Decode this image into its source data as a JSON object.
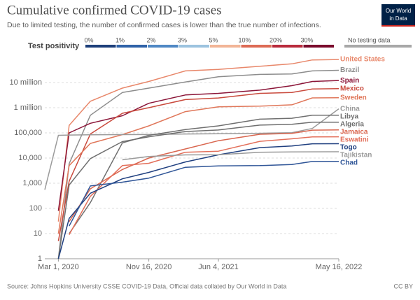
{
  "chart_data": {
    "type": "line",
    "title": "Cumulative confirmed COVID-19 cases",
    "subtitle": "Due to limited testing, the number of confirmed cases is lower than the true number of infections.",
    "logo": [
      "Our World",
      "in Data"
    ],
    "source": "Source: Johns Hopkins University CSSE COVID-19 Data, Official data collated by Our World in Data",
    "license": "CC BY",
    "legend": {
      "title": "Test positivity",
      "stops": [
        {
          "label": "0%",
          "color": "#1d3f7a"
        },
        {
          "label": "1%",
          "color": "#2f62a8"
        },
        {
          "label": "2%",
          "color": "#4f88c4"
        },
        {
          "label": "3%",
          "color": "#9cc3df"
        },
        {
          "label": "5%",
          "color": "#f2b597"
        },
        {
          "label": "10%",
          "color": "#dd6b55"
        },
        {
          "label": "20%",
          "color": "#b92b3c"
        },
        {
          "label": "30%",
          "color": "#7a0a2c"
        }
      ],
      "no_data": {
        "label": "No testing data",
        "color": "#a8a8a8"
      }
    },
    "log_scale": true,
    "grid": true,
    "xlim": [
      "2020-01-22",
      "2022-05-16"
    ],
    "xticks": [
      {
        "value": "2020-03-01",
        "label": "Mar 1, 2020"
      },
      {
        "value": "2020-11-16",
        "label": "Nov 16, 2020"
      },
      {
        "value": "2021-06-04",
        "label": "Jun 4, 2021"
      },
      {
        "value": "2022-05-16",
        "label": "May 16, 2022"
      }
    ],
    "ylim": [
      1,
      100000000
    ],
    "yticks": [
      1,
      10,
      100,
      {
        "value": 1000,
        "label": "1,000"
      },
      {
        "value": 10000,
        "label": "10,000"
      },
      {
        "value": 100000,
        "label": "100,000"
      },
      {
        "value": 1000000,
        "label": "1 million"
      },
      {
        "value": 10000000,
        "label": "10 million"
      }
    ],
    "x": [
      "2020-01-22",
      "2020-03-01",
      "2020-04-01",
      "2020-06-01",
      "2020-09-01",
      "2020-11-16",
      "2021-03-01",
      "2021-06-04",
      "2021-10-01",
      "2022-01-01",
      "2022-03-01",
      "2022-05-16"
    ],
    "series": [
      {
        "name": "United States",
        "color": "#e8876a",
        "values": [
          null,
          30,
          200000,
          1800000,
          6000000,
          11000000,
          29000000,
          33000000,
          44000000,
          55000000,
          79000000,
          82000000
        ]
      },
      {
        "name": "Brazil",
        "color": "#8c8c8c",
        "values": [
          null,
          1,
          6000,
          500000,
          4000000,
          6000000,
          10500000,
          17000000,
          21000000,
          22000000,
          29000000,
          30700000
        ]
      },
      {
        "name": "Spain",
        "color": "#8b1538",
        "values": [
          null,
          80,
          100000,
          240000,
          480000,
          1500000,
          3200000,
          3700000,
          4980000,
          7500000,
          11000000,
          12000000
        ]
      },
      {
        "name": "Mexico",
        "color": "#c94a3d",
        "values": [
          null,
          5,
          1200,
          90000,
          600000,
          1000000,
          2100000,
          2430000,
          3700000,
          4000000,
          5500000,
          5750000
        ]
      },
      {
        "name": "Sweden",
        "color": "#e0775a",
        "values": [
          null,
          10,
          5000,
          38000,
          85000,
          190000,
          700000,
          1080000,
          1150000,
          1300000,
          2450000,
          2500000
        ]
      },
      {
        "name": "China",
        "color": "#9a9a9a",
        "values": [
          550,
          80000,
          82000,
          84000,
          85000,
          86000,
          90000,
          92000,
          96000,
          102000,
          150000,
          900000
        ]
      },
      {
        "name": "Libya",
        "color": "#6f6f6f",
        "values": [
          null,
          null,
          10,
          170,
          40000,
          80000,
          135000,
          190000,
          350000,
          380000,
          500000,
          502000
        ]
      },
      {
        "name": "Algeria",
        "color": "#6f6f6f",
        "values": [
          null,
          1,
          850,
          9500,
          45000,
          70000,
          113000,
          130000,
          204000,
          218000,
          265000,
          266000
        ]
      },
      {
        "name": "Jamaica",
        "color": "#d9664f",
        "values": [
          null,
          null,
          30,
          600,
          3500,
          10000,
          23000,
          49000,
          88000,
          95000,
          128000,
          132000
        ]
      },
      {
        "name": "Eswatini",
        "color": "#e36f5a",
        "values": [
          null,
          null,
          9,
          300,
          5000,
          6200,
          17000,
          18700,
          46000,
          58000,
          69000,
          70000
        ]
      },
      {
        "name": "Togo",
        "color": "#1f3f7f",
        "values": [
          null,
          1,
          40,
          400,
          1500,
          2700,
          7000,
          13400,
          26000,
          30000,
          36900,
          37000
        ]
      },
      {
        "name": "Tajikistan",
        "color": "#9a9a9a",
        "values": [
          null,
          null,
          null,
          null,
          8500,
          11500,
          13300,
          13500,
          17000,
          17500,
          17700,
          17800
        ]
      },
      {
        "name": "Chad",
        "color": "#2f5597",
        "values": [
          null,
          null,
          20,
          780,
          1100,
          1600,
          4300,
          4900,
          5000,
          5500,
          7300,
          7400
        ]
      }
    ]
  }
}
